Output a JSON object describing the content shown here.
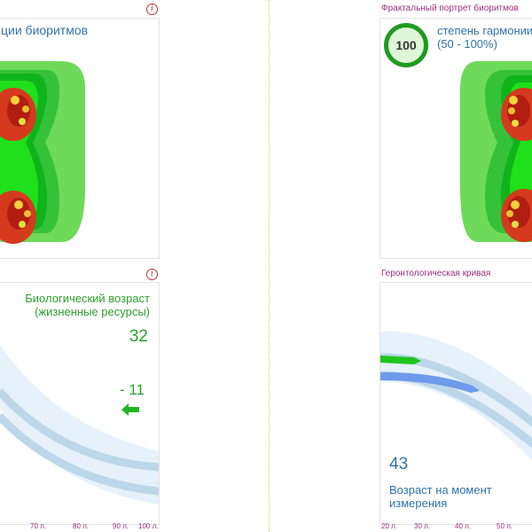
{
  "left_top": {
    "title_fragment": "ции биоритмов",
    "info_icon": "i"
  },
  "left_bottom": {
    "bio_age_label_line1": "Биологический возраст",
    "bio_age_label_line2": "(жизненные ресурсы)",
    "bio_age_value": "32",
    "delta_value": "- 11",
    "arrow_icon": "left-arrow-icon",
    "info_icon": "i",
    "axis_ticks": [
      "70 л.",
      "80 л.",
      "90 л.",
      "100 л."
    ]
  },
  "right_top": {
    "caption": "Фрактальный портрет биоритмов",
    "score": "100",
    "harmony_label_line1": "степень гармонии",
    "harmony_label_line2": "(50 - 100%)"
  },
  "right_bottom": {
    "caption": "Геронтологическая кривая",
    "age_value": "43",
    "age_label_line1": "Возраст на момент",
    "age_label_line2": "измерения",
    "axis_ticks": [
      "20 л.",
      "30 л.",
      "40 л.",
      "50 л."
    ]
  },
  "colors": {
    "accent_green": "#2ca02c",
    "accent_blue": "#2f73ad",
    "caption": "#a0307a",
    "divider": "#c7d84c"
  }
}
